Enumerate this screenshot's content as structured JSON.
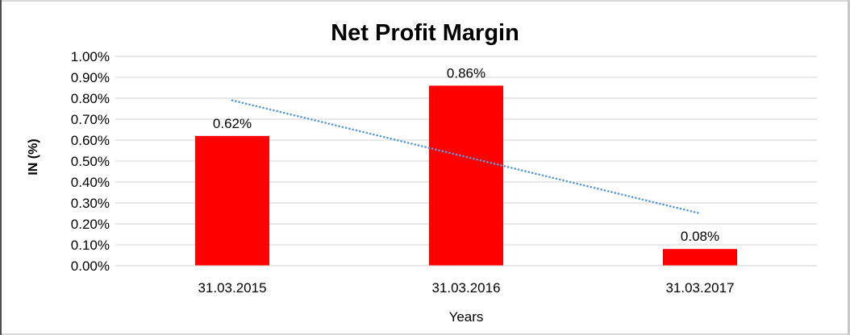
{
  "chart_data": {
    "type": "bar",
    "title": "Net Profit Margin",
    "xlabel": "Years",
    "ylabel": "IN (%)",
    "categories": [
      "31.03.2015",
      "31.03.2016",
      "31.03.2017"
    ],
    "series": [
      {
        "name": "Net Profit Margin",
        "values": [
          0.62,
          0.86,
          0.08
        ]
      }
    ],
    "data_labels": [
      "0.62%",
      "0.86%",
      "0.08%"
    ],
    "y_ticks": [
      "0.00%",
      "0.10%",
      "0.20%",
      "0.30%",
      "0.40%",
      "0.50%",
      "0.60%",
      "0.70%",
      "0.80%",
      "0.90%",
      "1.00%"
    ],
    "ylim": [
      0,
      1
    ],
    "y_tick_step": 0.1,
    "grid": true,
    "legend": "none",
    "trendline": {
      "type": "linear",
      "style": "dotted",
      "start_value": 0.79,
      "end_value": 0.25
    },
    "colors": {
      "bar": "#FF0000",
      "trendline": "#5B9BD5",
      "gridline": "#D9D9D9",
      "text": "#000000"
    }
  }
}
